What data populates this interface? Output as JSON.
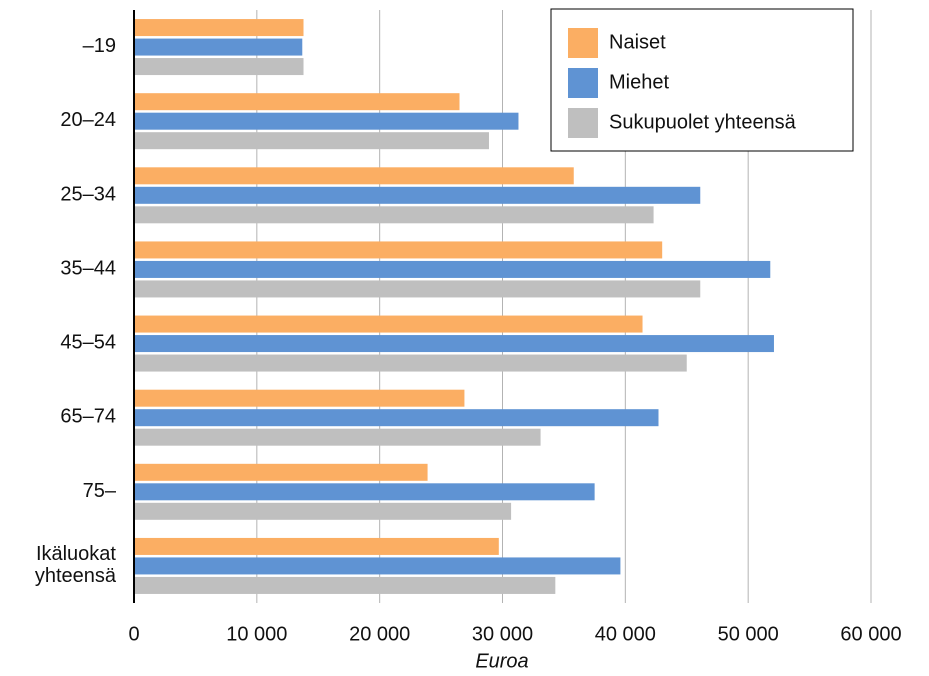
{
  "chart_data": {
    "type": "bar",
    "orientation": "horizontal",
    "categories": [
      "–19",
      "20–24",
      "25–34",
      "35–44",
      "45–54",
      "65–74",
      "75–",
      "Ikäluokat yhteensä"
    ],
    "series": [
      {
        "name": "Naiset",
        "color": "#fbae63",
        "values": [
          13800,
          26500,
          35800,
          43000,
          41400,
          26900,
          23900,
          29700
        ]
      },
      {
        "name": "Miehet",
        "color": "#5f93d3",
        "values": [
          13700,
          31300,
          46100,
          51800,
          52100,
          42700,
          37500,
          39600
        ]
      },
      {
        "name": "Sukupuolet yhteensä",
        "color": "#bfbfbf",
        "values": [
          13800,
          28900,
          42300,
          46100,
          45000,
          33100,
          30700,
          34300
        ]
      }
    ],
    "x_label": "Euroa",
    "xlim": [
      0,
      60000
    ],
    "xticks": [
      0,
      {
        "value": 10000,
        "label": "10 000"
      },
      {
        "value": 20000,
        "label": "20 000"
      },
      {
        "value": 30000,
        "label": "30 000"
      },
      {
        "value": 40000,
        "label": "40 000"
      },
      {
        "value": 50000,
        "label": "50 000"
      },
      {
        "value": 60000,
        "label": "60 000"
      }
    ],
    "grid": true,
    "legend": "upper right"
  }
}
